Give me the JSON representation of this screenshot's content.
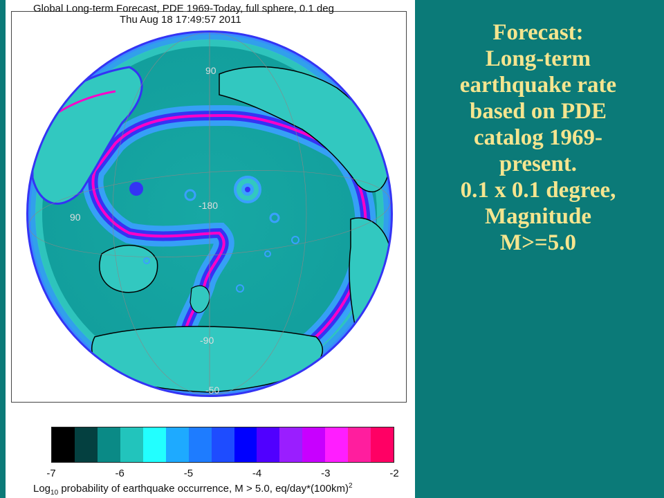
{
  "map": {
    "title": "Global Long-term Forecast, PDE 1969-Today, full sphere, 0.1 deg",
    "subtitle": "Thu Aug 18 17:49:57 2011",
    "grid_labels": {
      "center_lon": "-180",
      "lat_90_north": "90",
      "lat_90_south": "-90",
      "lat_50_south": "-50",
      "lon_90": "90"
    },
    "colors": {
      "ocean_background": "#129e9c",
      "low_rate": "#32c8c0",
      "mid_rate": "#3aa0ff",
      "high_rate": "#3434f4",
      "max_rate": "#ff00c8",
      "coastline": "#000000"
    }
  },
  "colorbar": {
    "colors": [
      "#000000",
      "#044040",
      "#0a8a86",
      "#22c4bc",
      "#22ffff",
      "#1eaaff",
      "#1e7cff",
      "#1e4cff",
      "#0000ff",
      "#5000ff",
      "#9a1eff",
      "#c800ff",
      "#ff1eff",
      "#ff1e9e",
      "#ff0064"
    ],
    "ticks": [
      "-7",
      "-6",
      "-5",
      "-4",
      "-3",
      "-2"
    ],
    "label_prefix": "Log",
    "label_sub": "10",
    "label_main": " probability of earthquake occurrence, M > 5.0, eq/day*(100km)",
    "label_sup": "2"
  },
  "description": {
    "lines": [
      "Forecast:",
      "Long-term",
      "earthquake rate",
      "based on PDE",
      "catalog 1969-",
      "present.",
      "0.1 x 0.1 degree,",
      "Magnitude",
      "M>=5.0"
    ]
  }
}
